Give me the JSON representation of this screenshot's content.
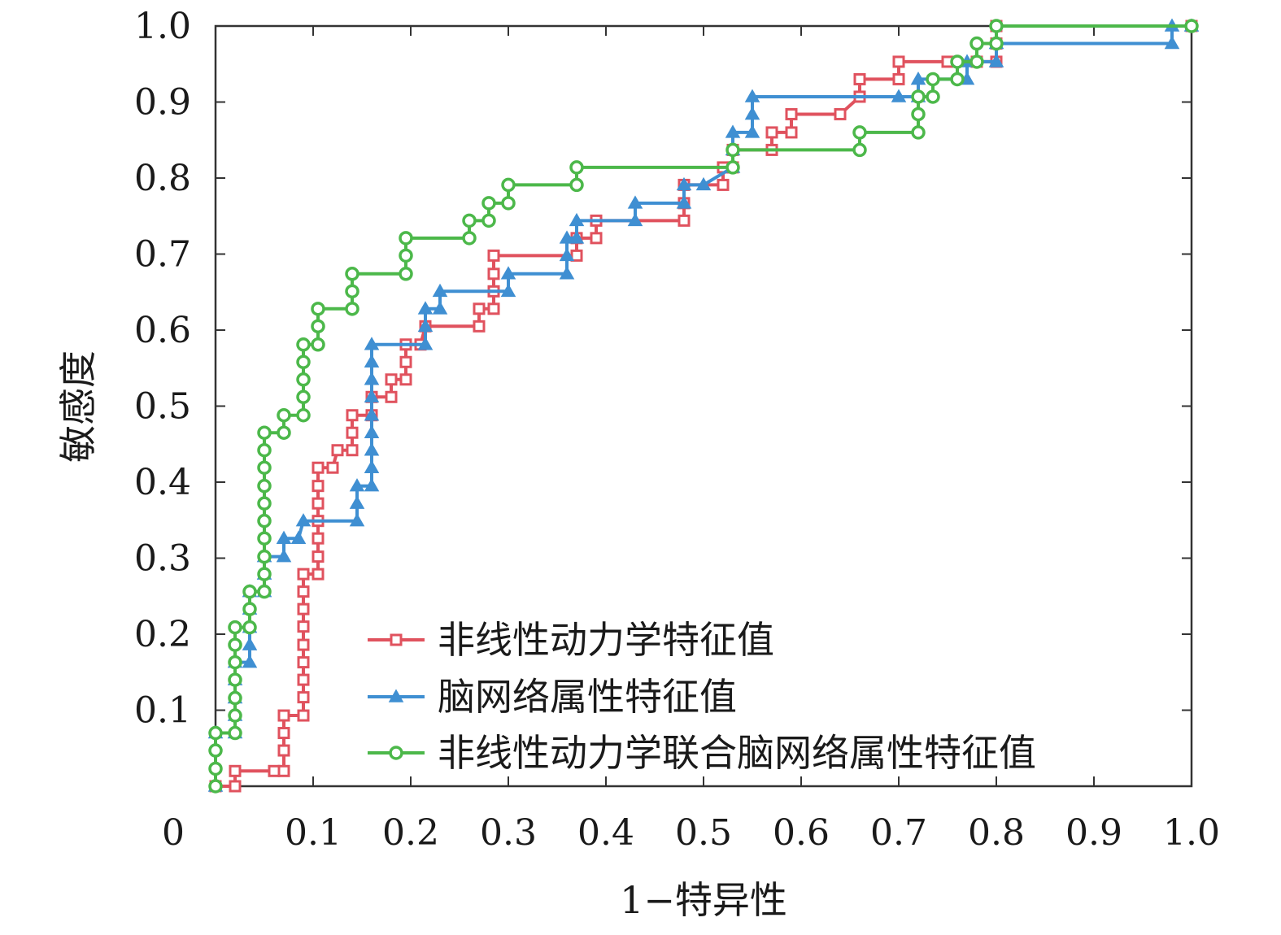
{
  "chart_data": {
    "type": "line",
    "title": "",
    "xlabel": "1−特异性",
    "ylabel": "敏感度",
    "xlim": [
      0,
      1
    ],
    "ylim": [
      0,
      1
    ],
    "grid": false,
    "legend_position": "bottom-right",
    "x_ticks": [
      "0",
      "0.1",
      "0.2",
      "0.3",
      "0.4",
      "0.5",
      "0.6",
      "0.7",
      "0.8",
      "0.9",
      "1.0"
    ],
    "y_ticks": [
      "0.1",
      "0.2",
      "0.3",
      "0.4",
      "0.5",
      "0.6",
      "0.7",
      "0.8",
      "0.9",
      "1.0"
    ],
    "series": [
      {
        "name": "非线性动力学特征值",
        "color": "#e0525e",
        "marker": "square",
        "points": [
          [
            0.0,
            0.0
          ],
          [
            0.02,
            0.0
          ],
          [
            0.02,
            0.02
          ],
          [
            0.06,
            0.02
          ],
          [
            0.07,
            0.02
          ],
          [
            0.07,
            0.047
          ],
          [
            0.07,
            0.07
          ],
          [
            0.07,
            0.093
          ],
          [
            0.09,
            0.093
          ],
          [
            0.09,
            0.117
          ],
          [
            0.09,
            0.14
          ],
          [
            0.09,
            0.163
          ],
          [
            0.09,
            0.186
          ],
          [
            0.09,
            0.21
          ],
          [
            0.09,
            0.233
          ],
          [
            0.09,
            0.256
          ],
          [
            0.09,
            0.279
          ],
          [
            0.105,
            0.279
          ],
          [
            0.105,
            0.302
          ],
          [
            0.105,
            0.326
          ],
          [
            0.105,
            0.349
          ],
          [
            0.105,
            0.372
          ],
          [
            0.105,
            0.395
          ],
          [
            0.105,
            0.419
          ],
          [
            0.12,
            0.419
          ],
          [
            0.125,
            0.442
          ],
          [
            0.14,
            0.442
          ],
          [
            0.14,
            0.465
          ],
          [
            0.14,
            0.488
          ],
          [
            0.16,
            0.488
          ],
          [
            0.16,
            0.512
          ],
          [
            0.18,
            0.512
          ],
          [
            0.18,
            0.535
          ],
          [
            0.195,
            0.535
          ],
          [
            0.195,
            0.558
          ],
          [
            0.195,
            0.581
          ],
          [
            0.21,
            0.581
          ],
          [
            0.215,
            0.605
          ],
          [
            0.27,
            0.605
          ],
          [
            0.27,
            0.628
          ],
          [
            0.285,
            0.628
          ],
          [
            0.285,
            0.651
          ],
          [
            0.285,
            0.674
          ],
          [
            0.285,
            0.698
          ],
          [
            0.37,
            0.698
          ],
          [
            0.37,
            0.721
          ],
          [
            0.39,
            0.721
          ],
          [
            0.39,
            0.744
          ],
          [
            0.48,
            0.744
          ],
          [
            0.48,
            0.767
          ],
          [
            0.48,
            0.791
          ],
          [
            0.52,
            0.791
          ],
          [
            0.52,
            0.814
          ],
          [
            0.53,
            0.814
          ],
          [
            0.53,
            0.837
          ],
          [
            0.57,
            0.837
          ],
          [
            0.57,
            0.86
          ],
          [
            0.59,
            0.86
          ],
          [
            0.59,
            0.884
          ],
          [
            0.64,
            0.884
          ],
          [
            0.66,
            0.907
          ],
          [
            0.66,
            0.93
          ],
          [
            0.7,
            0.93
          ],
          [
            0.7,
            0.953
          ],
          [
            0.75,
            0.953
          ],
          [
            0.78,
            0.953
          ],
          [
            0.8,
            0.953
          ],
          [
            0.8,
            0.977
          ],
          [
            0.8,
            1.0
          ],
          [
            1.0,
            1.0
          ]
        ]
      },
      {
        "name": "脑网络属性特征值",
        "color": "#3f8fd2",
        "marker": "triangle",
        "points": [
          [
            0.0,
            0.0
          ],
          [
            0.0,
            0.07
          ],
          [
            0.02,
            0.07
          ],
          [
            0.02,
            0.093
          ],
          [
            0.02,
            0.116
          ],
          [
            0.02,
            0.14
          ],
          [
            0.02,
            0.163
          ],
          [
            0.035,
            0.163
          ],
          [
            0.035,
            0.186
          ],
          [
            0.035,
            0.209
          ],
          [
            0.035,
            0.233
          ],
          [
            0.035,
            0.256
          ],
          [
            0.05,
            0.256
          ],
          [
            0.05,
            0.279
          ],
          [
            0.05,
            0.302
          ],
          [
            0.07,
            0.302
          ],
          [
            0.07,
            0.326
          ],
          [
            0.085,
            0.326
          ],
          [
            0.09,
            0.349
          ],
          [
            0.145,
            0.349
          ],
          [
            0.145,
            0.372
          ],
          [
            0.145,
            0.395
          ],
          [
            0.16,
            0.395
          ],
          [
            0.16,
            0.419
          ],
          [
            0.16,
            0.442
          ],
          [
            0.16,
            0.465
          ],
          [
            0.16,
            0.488
          ],
          [
            0.16,
            0.512
          ],
          [
            0.16,
            0.535
          ],
          [
            0.16,
            0.558
          ],
          [
            0.16,
            0.581
          ],
          [
            0.215,
            0.581
          ],
          [
            0.215,
            0.605
          ],
          [
            0.215,
            0.628
          ],
          [
            0.23,
            0.628
          ],
          [
            0.23,
            0.651
          ],
          [
            0.3,
            0.651
          ],
          [
            0.3,
            0.674
          ],
          [
            0.36,
            0.674
          ],
          [
            0.36,
            0.698
          ],
          [
            0.36,
            0.721
          ],
          [
            0.37,
            0.721
          ],
          [
            0.37,
            0.744
          ],
          [
            0.43,
            0.744
          ],
          [
            0.43,
            0.767
          ],
          [
            0.48,
            0.767
          ],
          [
            0.48,
            0.791
          ],
          [
            0.5,
            0.791
          ],
          [
            0.53,
            0.814
          ],
          [
            0.53,
            0.837
          ],
          [
            0.53,
            0.86
          ],
          [
            0.55,
            0.86
          ],
          [
            0.55,
            0.884
          ],
          [
            0.55,
            0.907
          ],
          [
            0.7,
            0.907
          ],
          [
            0.72,
            0.907
          ],
          [
            0.72,
            0.93
          ],
          [
            0.77,
            0.93
          ],
          [
            0.77,
            0.953
          ],
          [
            0.8,
            0.953
          ],
          [
            0.8,
            0.977
          ],
          [
            0.98,
            0.977
          ],
          [
            0.98,
            1.0
          ],
          [
            1.0,
            1.0
          ]
        ]
      },
      {
        "name": "非线性动力学联合脑网络属性特征值",
        "color": "#4cb84a",
        "marker": "circle",
        "points": [
          [
            0.0,
            0.0
          ],
          [
            0.0,
            0.023
          ],
          [
            0.0,
            0.047
          ],
          [
            0.0,
            0.07
          ],
          [
            0.02,
            0.07
          ],
          [
            0.02,
            0.093
          ],
          [
            0.02,
            0.116
          ],
          [
            0.02,
            0.14
          ],
          [
            0.02,
            0.163
          ],
          [
            0.02,
            0.186
          ],
          [
            0.02,
            0.209
          ],
          [
            0.035,
            0.209
          ],
          [
            0.035,
            0.233
          ],
          [
            0.035,
            0.256
          ],
          [
            0.05,
            0.256
          ],
          [
            0.05,
            0.279
          ],
          [
            0.05,
            0.302
          ],
          [
            0.05,
            0.326
          ],
          [
            0.05,
            0.349
          ],
          [
            0.05,
            0.372
          ],
          [
            0.05,
            0.395
          ],
          [
            0.05,
            0.419
          ],
          [
            0.05,
            0.442
          ],
          [
            0.05,
            0.465
          ],
          [
            0.07,
            0.465
          ],
          [
            0.07,
            0.488
          ],
          [
            0.09,
            0.488
          ],
          [
            0.09,
            0.512
          ],
          [
            0.09,
            0.535
          ],
          [
            0.09,
            0.558
          ],
          [
            0.09,
            0.581
          ],
          [
            0.105,
            0.581
          ],
          [
            0.105,
            0.605
          ],
          [
            0.105,
            0.628
          ],
          [
            0.14,
            0.628
          ],
          [
            0.14,
            0.651
          ],
          [
            0.14,
            0.674
          ],
          [
            0.195,
            0.674
          ],
          [
            0.195,
            0.698
          ],
          [
            0.195,
            0.721
          ],
          [
            0.26,
            0.721
          ],
          [
            0.26,
            0.744
          ],
          [
            0.28,
            0.744
          ],
          [
            0.28,
            0.767
          ],
          [
            0.3,
            0.767
          ],
          [
            0.3,
            0.791
          ],
          [
            0.37,
            0.791
          ],
          [
            0.37,
            0.814
          ],
          [
            0.53,
            0.814
          ],
          [
            0.53,
            0.837
          ],
          [
            0.66,
            0.837
          ],
          [
            0.66,
            0.86
          ],
          [
            0.72,
            0.86
          ],
          [
            0.72,
            0.884
          ],
          [
            0.72,
            0.907
          ],
          [
            0.735,
            0.907
          ],
          [
            0.735,
            0.93
          ],
          [
            0.76,
            0.93
          ],
          [
            0.76,
            0.953
          ],
          [
            0.78,
            0.953
          ],
          [
            0.78,
            0.977
          ],
          [
            0.8,
            0.977
          ],
          [
            0.8,
            1.0
          ],
          [
            1.0,
            1.0
          ]
        ]
      }
    ]
  }
}
